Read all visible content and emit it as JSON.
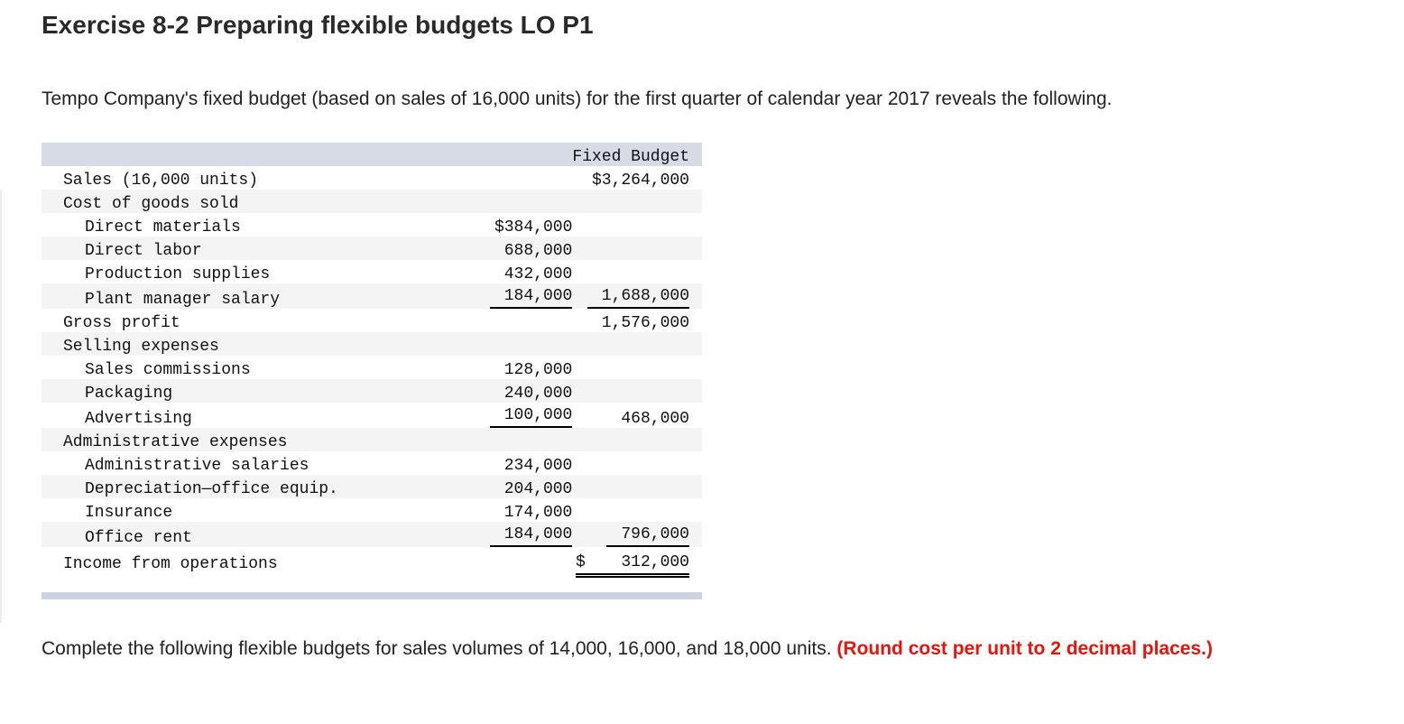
{
  "title": "Exercise 8-2 Preparing flexible budgets LO P1",
  "intro": "Tempo Company's fixed budget (based on sales of 16,000 units) for the first quarter of calendar year 2017 reveals the following.",
  "table": {
    "header": "Fixed Budget",
    "rows": [
      {
        "label": "Sales (16,000 units)",
        "c1": "",
        "c2": "$3,264,000"
      },
      {
        "label": "Cost of goods sold",
        "c1": "",
        "c2": ""
      },
      {
        "label": "Direct materials",
        "c1": "$384,000",
        "c2": ""
      },
      {
        "label": "Direct labor",
        "c1": "688,000",
        "c2": ""
      },
      {
        "label": "Production supplies",
        "c1": "432,000",
        "c2": ""
      },
      {
        "label": "Plant manager salary",
        "c1": "184,000",
        "c2": "1,688,000"
      },
      {
        "label": "Gross profit",
        "c1": "",
        "c2": "1,576,000"
      },
      {
        "label": "Selling expenses",
        "c1": "",
        "c2": ""
      },
      {
        "label": "Sales commissions",
        "c1": "128,000",
        "c2": ""
      },
      {
        "label": "Packaging",
        "c1": "240,000",
        "c2": ""
      },
      {
        "label": "Advertising",
        "c1": "100,000",
        "c2": "468,000"
      },
      {
        "label": "Administrative expenses",
        "c1": "",
        "c2": ""
      },
      {
        "label": "Administrative salaries",
        "c1": "234,000",
        "c2": ""
      },
      {
        "label": "Depreciation—office equip.",
        "c1": "204,000",
        "c2": ""
      },
      {
        "label": "Insurance",
        "c1": "174,000",
        "c2": ""
      },
      {
        "label": "Office rent",
        "c1": "184,000",
        "c2": "796,000"
      },
      {
        "label": "Income from operations",
        "c1": "",
        "c2_currency": "$",
        "c2": "312,000"
      }
    ]
  },
  "instructions": {
    "text": "Complete the following flexible budgets for sales volumes of 14,000, 16,000, and 18,000 units.",
    "note": "(Round cost per unit to 2 decimal places.)",
    "note_color": "#e8140c"
  }
}
